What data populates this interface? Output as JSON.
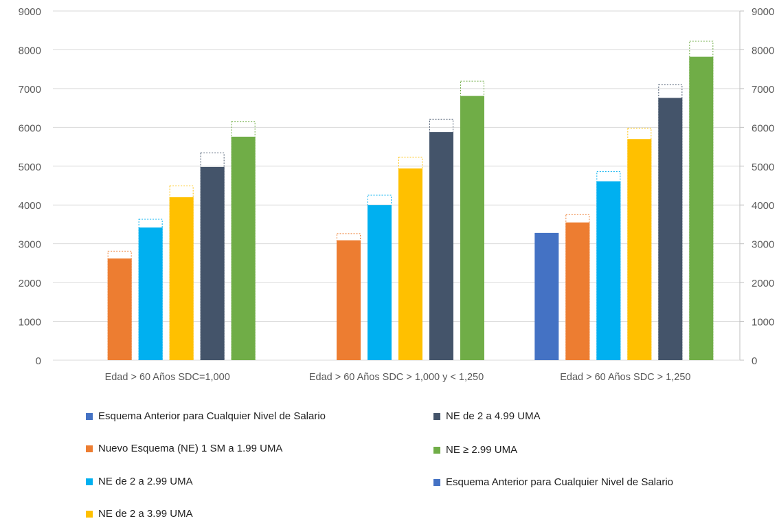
{
  "chart_data": {
    "type": "bar",
    "categories": [
      "Edad > 60 Años SDC=1,000",
      "Edad > 60 Años SDC > 1,000 y < 1,250",
      "Edad > 60 Años SDC > 1,250"
    ],
    "series": [
      {
        "name": "Esquema Anterior para Cualquier Nivel de Salario",
        "color": "#4472C4",
        "values": [
          null,
          null,
          3280
        ],
        "outline_values": [
          null,
          null,
          null
        ]
      },
      {
        "name": "Nuevo Esquema (NE) 1 SM a 1.99 UMA",
        "color": "#ED7D31",
        "values": [
          2620,
          3090,
          3550
        ],
        "outline_values": [
          2820,
          3270,
          3760
        ]
      },
      {
        "name": "NE de 2 a 2.99 UMA",
        "color": "#00B0F0",
        "values": [
          3420,
          4000,
          4610
        ],
        "outline_values": [
          3640,
          4260,
          4870
        ]
      },
      {
        "name": "NE de 2 a 3.99 UMA",
        "color": "#FFC000",
        "values": [
          4200,
          4940,
          5700
        ],
        "outline_values": [
          4500,
          5240,
          5990
        ]
      },
      {
        "name": "NE de 2 a 4.99 UMA",
        "color": "#44546A",
        "values": [
          4980,
          5880,
          6760
        ],
        "outline_values": [
          5350,
          6220,
          7110
        ]
      },
      {
        "name": "NE ≥ 2.99 UMA",
        "color": "#70AD47",
        "values": [
          5760,
          6810,
          7820
        ],
        "outline_values": [
          6160,
          7200,
          8230
        ]
      }
    ],
    "ylim": [
      0,
      9000
    ],
    "yticks": [
      "0",
      "1000",
      "2000",
      "3000",
      "4000",
      "5000",
      "6000",
      "7000",
      "8000",
      "9000"
    ],
    "y2ticks": [
      "0",
      "1000",
      "2000",
      "3000",
      "4000",
      "5000",
      "6000",
      "7000",
      "8000",
      "9000"
    ],
    "grid": true,
    "legend_placement": "bottom",
    "legend": [
      {
        "label": "Esquema Anterior para Cualquier Nivel de Salario",
        "color": "#4472C4"
      },
      {
        "label": "NE de 2 a 4.99 UMA",
        "color": "#44546A"
      },
      {
        "label": "Nuevo Esquema (NE) 1 SM a 1.99 UMA",
        "color": "#ED7D31"
      },
      {
        "label": "NE ≥ 2.99 UMA",
        "color": "#70AD47"
      },
      {
        "label": "NE de 2 a 2.99 UMA",
        "color": "#00B0F0"
      },
      {
        "label": "Esquema Anterior para Cualquier Nivel de Salario",
        "color": "#4472C4"
      },
      {
        "label": "NE de 2 a 3.99 UMA",
        "color": "#FFC000"
      }
    ]
  }
}
